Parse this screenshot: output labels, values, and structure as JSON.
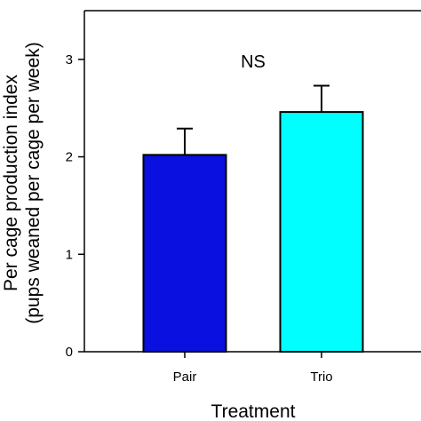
{
  "chart_data": {
    "type": "bar",
    "categories": [
      "Pair",
      "Trio"
    ],
    "values": [
      2.02,
      2.46
    ],
    "error": [
      0.27,
      0.27
    ],
    "colors": [
      "#0a10e0",
      "#00ffff"
    ],
    "xlabel": "Treatment",
    "ylabel_line1": "Per cage production index",
    "ylabel_line2": "(pups weaned per cage per week)",
    "ylim": [
      0,
      3.5
    ],
    "yticks": [
      "0",
      "1",
      "2",
      "3"
    ],
    "annotation": "NS"
  }
}
